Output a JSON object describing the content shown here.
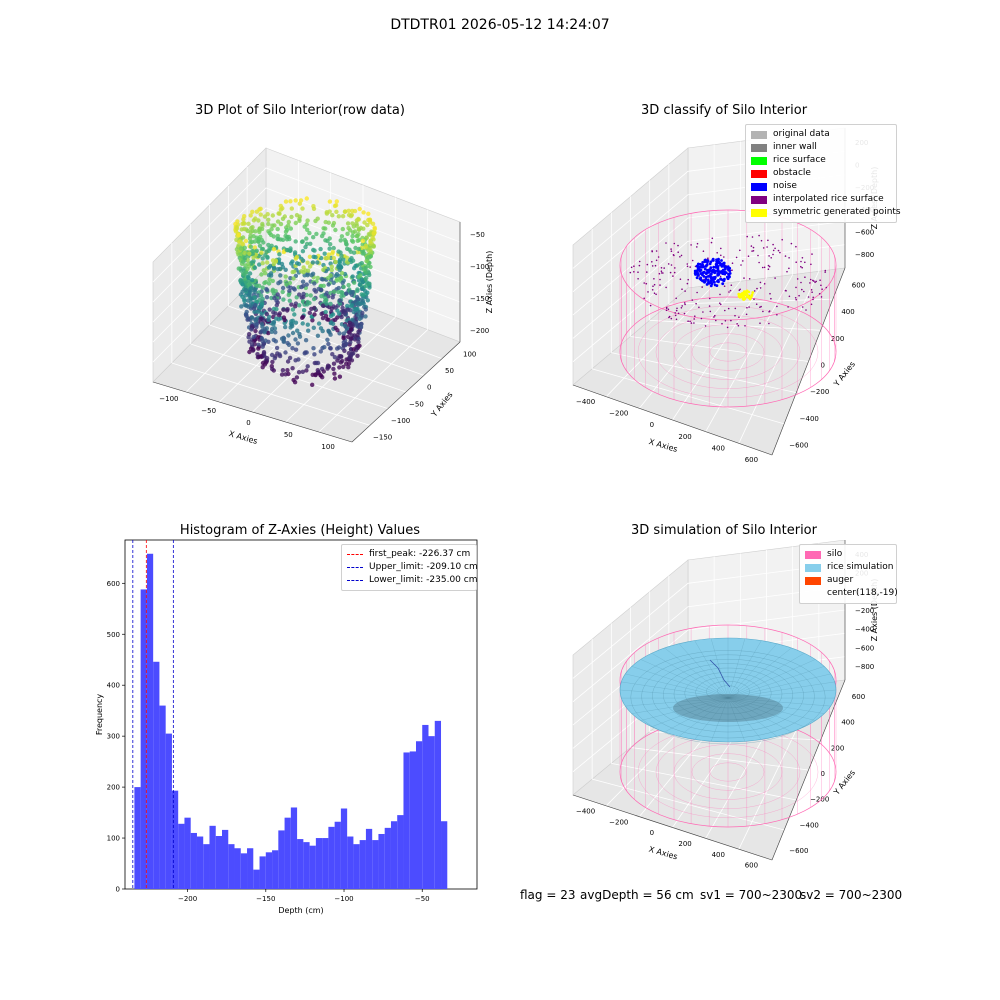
{
  "suptitle": "DTDTR01 2026-05-12 14:24:07",
  "colors": {
    "hist_bar": "#4c4cff",
    "peak_line": "#ff0000",
    "limit_line": "#0000cc",
    "silo": "#ff69b4",
    "rice_sim": "#87ceeb",
    "auger": "#ff4500"
  },
  "chart_data": [
    {
      "id": "raw",
      "type": "scatter",
      "title": "3D Plot of Silo Interior(row data)",
      "xlabel": "X Axies",
      "ylabel": "Y Axies",
      "zlabel": "Z Axies (Depth)",
      "x_ticks": [
        "−100",
        "−50",
        "0",
        "50",
        "100"
      ],
      "y_ticks": [
        "−150",
        "−100",
        "−50",
        "0",
        "50",
        "100"
      ],
      "z_ticks": [
        "−50",
        "−100",
        "−150",
        "−200"
      ],
      "colormap": "viridis"
    },
    {
      "id": "classify",
      "type": "scatter",
      "title": "3D classify of Silo Interior",
      "xlabel": "X Axies",
      "ylabel": "Y Axies",
      "zlabel": "Z Axies (Depth)",
      "x_ticks": [
        "−400",
        "−200",
        "0",
        "200",
        "400",
        "600"
      ],
      "y_ticks": [
        "−600",
        "−400",
        "−200",
        "0",
        "200",
        "400",
        "600"
      ],
      "z_ticks": [
        "200",
        "0",
        "−200",
        "−400",
        "−600",
        "−800"
      ],
      "legend": [
        {
          "label": "original data",
          "color": "#b3b3b3"
        },
        {
          "label": "inner wall",
          "color": "#808080"
        },
        {
          "label": "rice surface",
          "color": "#00ff00"
        },
        {
          "label": "obstacle",
          "color": "#ff0000"
        },
        {
          "label": "noise",
          "color": "#0000ff"
        },
        {
          "label": "interpolated rice surface",
          "color": "#800080"
        },
        {
          "label": "symmetric generated points",
          "color": "#ffff00"
        }
      ]
    },
    {
      "id": "hist",
      "type": "bar",
      "title": "Histogram of Z-Axies (Height) Values",
      "xlabel": "Depth (cm)",
      "ylabel": "Frequency",
      "xlim": [
        -240,
        -15
      ],
      "ylim": [
        0,
        685
      ],
      "bin_width": 4,
      "bin_start": -234,
      "values": [
        200,
        588,
        658,
        446,
        360,
        305,
        193,
        128,
        140,
        110,
        103,
        88,
        124,
        104,
        116,
        88,
        80,
        70,
        80,
        38,
        64,
        72,
        76,
        115,
        140,
        160,
        98,
        92,
        85,
        100,
        100,
        122,
        132,
        158,
        103,
        88,
        96,
        118,
        96,
        108,
        120,
        133,
        145,
        268,
        270,
        290,
        322,
        300,
        330,
        133
      ],
      "x_ticks": [
        -200,
        -150,
        -100,
        -50
      ],
      "x_tick_labels": [
        "−200",
        "−150",
        "−100",
        "−50"
      ],
      "y_ticks": [
        0,
        100,
        200,
        300,
        400,
        500,
        600
      ],
      "vlines": [
        {
          "x": -226.37,
          "label": "first_peak: -226.37 cm",
          "color": "#ff0000"
        },
        {
          "x": -209.1,
          "label": "Upper_limit: -209.10 cm",
          "color": "#0000cc"
        },
        {
          "x": -235.0,
          "label": "Lower_limit: -235.00 cm",
          "color": "#0000cc"
        }
      ],
      "legend_position": "top-right"
    },
    {
      "id": "sim",
      "type": "surface",
      "title": "3D simulation of Silo Interior",
      "xlabel": "X Axies",
      "ylabel": "Y Axies",
      "zlabel": "Z Axies (Depth)",
      "x_ticks": [
        "−400",
        "−200",
        "0",
        "200",
        "400",
        "600"
      ],
      "y_ticks": [
        "−600",
        "−400",
        "−200",
        "0",
        "200",
        "400",
        "600"
      ],
      "z_ticks": [
        "400",
        "200",
        "0",
        "−200",
        "−400",
        "−600",
        "−800"
      ],
      "legend": [
        {
          "label": "silo",
          "color": "#ff69b4"
        },
        {
          "label": "rice simulation",
          "color": "#87ceeb"
        },
        {
          "label": "auger",
          "color": "#ff4500"
        },
        {
          "label": "center(118,-19)",
          "color": ""
        }
      ]
    }
  ],
  "footer": {
    "flag": "flag = 23",
    "avg": "avgDepth = 56 cm",
    "sv1": "sv1 = 700~2300",
    "sv2": "sv2 = 700~2300"
  }
}
